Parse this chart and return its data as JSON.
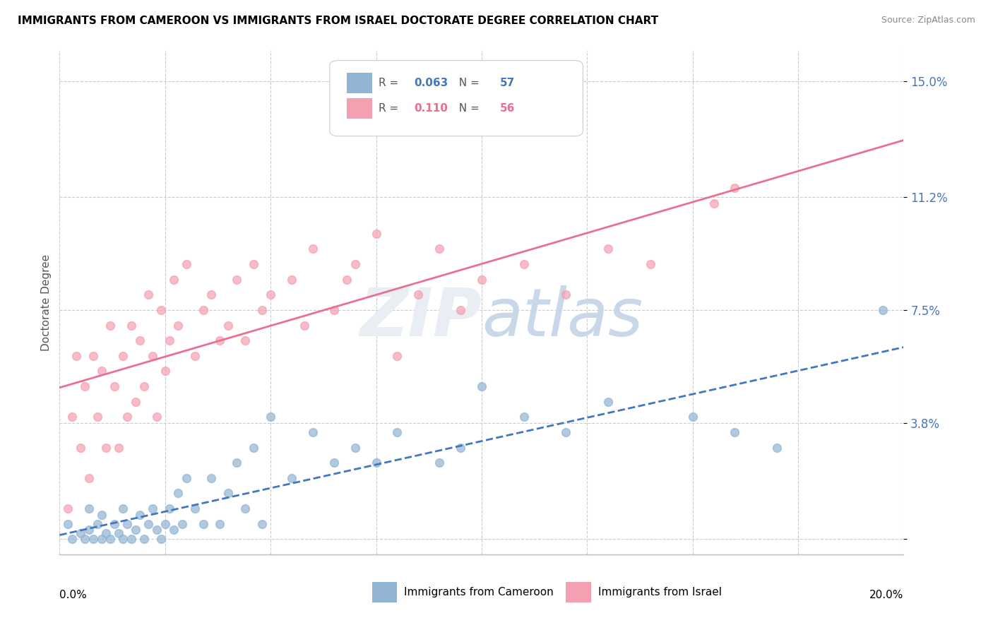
{
  "title": "IMMIGRANTS FROM CAMEROON VS IMMIGRANTS FROM ISRAEL DOCTORATE DEGREE CORRELATION CHART",
  "source": "Source: ZipAtlas.com",
  "ylabel": "Doctorate Degree",
  "label_cameroon": "Immigrants from Cameroon",
  "label_israel": "Immigrants from Israel",
  "x_lim": [
    0.0,
    0.2
  ],
  "y_lim": [
    -0.005,
    0.16
  ],
  "y_ticks": [
    0.0,
    0.038,
    0.075,
    0.112,
    0.15
  ],
  "y_tick_labels": [
    "",
    "3.8%",
    "7.5%",
    "11.2%",
    "15.0%"
  ],
  "legend_blue_r_val": "0.063",
  "legend_blue_n_val": "57",
  "legend_pink_r_val": "0.110",
  "legend_pink_n_val": "56",
  "blue_color": "#92B4D4",
  "pink_color": "#F4A0B0",
  "trend_blue": "#4477BB",
  "trend_pink": "#E87090",
  "watermark_color": "#e8eef4",
  "cameroon_x": [
    0.002,
    0.003,
    0.005,
    0.006,
    0.007,
    0.007,
    0.008,
    0.009,
    0.01,
    0.01,
    0.011,
    0.012,
    0.013,
    0.014,
    0.015,
    0.015,
    0.016,
    0.017,
    0.018,
    0.019,
    0.02,
    0.021,
    0.022,
    0.023,
    0.024,
    0.025,
    0.026,
    0.027,
    0.028,
    0.029,
    0.03,
    0.032,
    0.034,
    0.036,
    0.038,
    0.04,
    0.042,
    0.044,
    0.046,
    0.048,
    0.05,
    0.055,
    0.06,
    0.065,
    0.07,
    0.075,
    0.08,
    0.09,
    0.095,
    0.1,
    0.11,
    0.12,
    0.13,
    0.15,
    0.16,
    0.17,
    0.195
  ],
  "cameroon_y": [
    0.005,
    0.0,
    0.002,
    0.0,
    0.003,
    0.01,
    0.0,
    0.005,
    0.0,
    0.008,
    0.002,
    0.0,
    0.005,
    0.002,
    0.0,
    0.01,
    0.005,
    0.0,
    0.003,
    0.008,
    0.0,
    0.005,
    0.01,
    0.003,
    0.0,
    0.005,
    0.01,
    0.003,
    0.015,
    0.005,
    0.02,
    0.01,
    0.005,
    0.02,
    0.005,
    0.015,
    0.025,
    0.01,
    0.03,
    0.005,
    0.04,
    0.02,
    0.035,
    0.025,
    0.03,
    0.025,
    0.035,
    0.025,
    0.03,
    0.05,
    0.04,
    0.035,
    0.045,
    0.04,
    0.035,
    0.03,
    0.075
  ],
  "israel_x": [
    0.002,
    0.003,
    0.004,
    0.005,
    0.006,
    0.007,
    0.008,
    0.009,
    0.01,
    0.011,
    0.012,
    0.013,
    0.014,
    0.015,
    0.016,
    0.017,
    0.018,
    0.019,
    0.02,
    0.021,
    0.022,
    0.023,
    0.024,
    0.025,
    0.026,
    0.027,
    0.028,
    0.03,
    0.032,
    0.034,
    0.036,
    0.038,
    0.04,
    0.042,
    0.044,
    0.046,
    0.048,
    0.05,
    0.055,
    0.058,
    0.06,
    0.065,
    0.068,
    0.07,
    0.075,
    0.08,
    0.085,
    0.09,
    0.095,
    0.1,
    0.11,
    0.12,
    0.13,
    0.14,
    0.155,
    0.16
  ],
  "israel_y": [
    0.01,
    0.04,
    0.06,
    0.03,
    0.05,
    0.02,
    0.06,
    0.04,
    0.055,
    0.03,
    0.07,
    0.05,
    0.03,
    0.06,
    0.04,
    0.07,
    0.045,
    0.065,
    0.05,
    0.08,
    0.06,
    0.04,
    0.075,
    0.055,
    0.065,
    0.085,
    0.07,
    0.09,
    0.06,
    0.075,
    0.08,
    0.065,
    0.07,
    0.085,
    0.065,
    0.09,
    0.075,
    0.08,
    0.085,
    0.07,
    0.095,
    0.075,
    0.085,
    0.09,
    0.1,
    0.06,
    0.08,
    0.095,
    0.075,
    0.085,
    0.09,
    0.08,
    0.095,
    0.09,
    0.11,
    0.115
  ]
}
